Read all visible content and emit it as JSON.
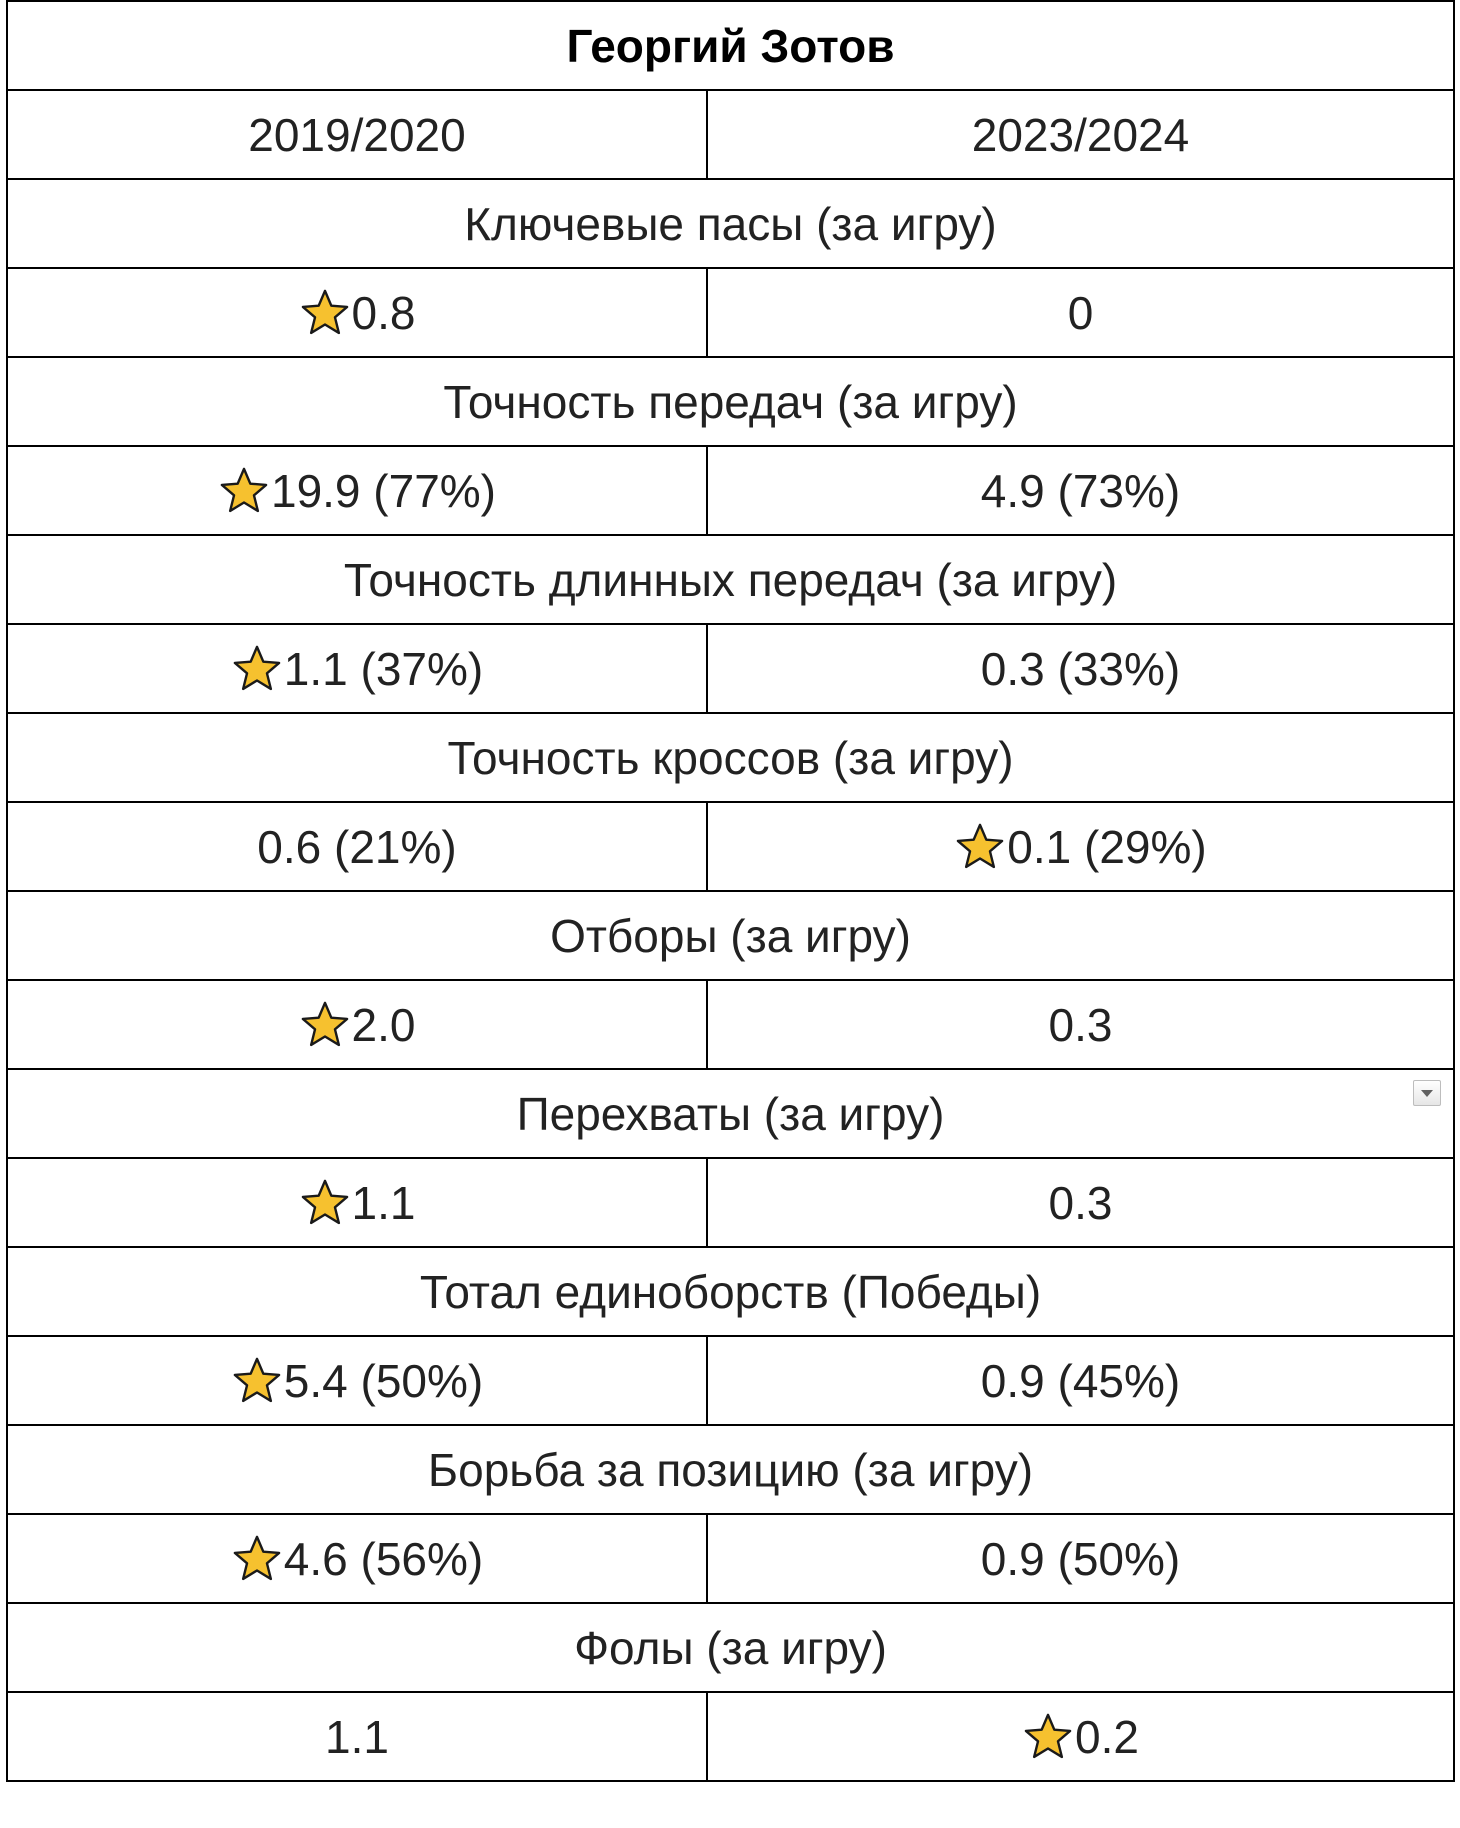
{
  "title": "Георгий Зотов",
  "seasons": [
    "2019/2020",
    "2023/2024"
  ],
  "colors": {
    "star_fill": "#F6C12F",
    "star_stroke": "#1a1a1a",
    "border": "#000000"
  },
  "rows": [
    {
      "label": "Ключевые пасы (за игру)",
      "a": "0.8",
      "b": "0",
      "a_star": true,
      "b_star": false
    },
    {
      "label": "Точность передач (за игру)",
      "a": "19.9 (77%)",
      "b": "4.9 (73%)",
      "a_star": true,
      "b_star": false
    },
    {
      "label": "Точность длинных передач (за игру)",
      "a": "1.1 (37%)",
      "b": "0.3 (33%)",
      "a_star": true,
      "b_star": false
    },
    {
      "label": "Точность кроссов (за игру)",
      "a": "0.6 (21%)",
      "b": "0.1 (29%)",
      "a_star": false,
      "b_star": true
    },
    {
      "label": "Отборы (за игру)",
      "a": "2.0",
      "b": "0.3",
      "a_star": true,
      "b_star": false
    },
    {
      "label": "Перехваты (за игру)",
      "a": "1.1",
      "b": "0.3",
      "a_star": true,
      "b_star": false,
      "dropdown": true
    },
    {
      "label": "Тотал единоборств (Победы)",
      "a": "5.4 (50%)",
      "b": "0.9 (45%)",
      "a_star": true,
      "b_star": false
    },
    {
      "label": "Борьба за позицию (за игру)",
      "a": "4.6 (56%)",
      "b": "0.9 (50%)",
      "a_star": true,
      "b_star": false
    },
    {
      "label": "Фолы (за игру)",
      "a": "1.1",
      "b": "0.2",
      "a_star": false,
      "b_star": true
    }
  ]
}
